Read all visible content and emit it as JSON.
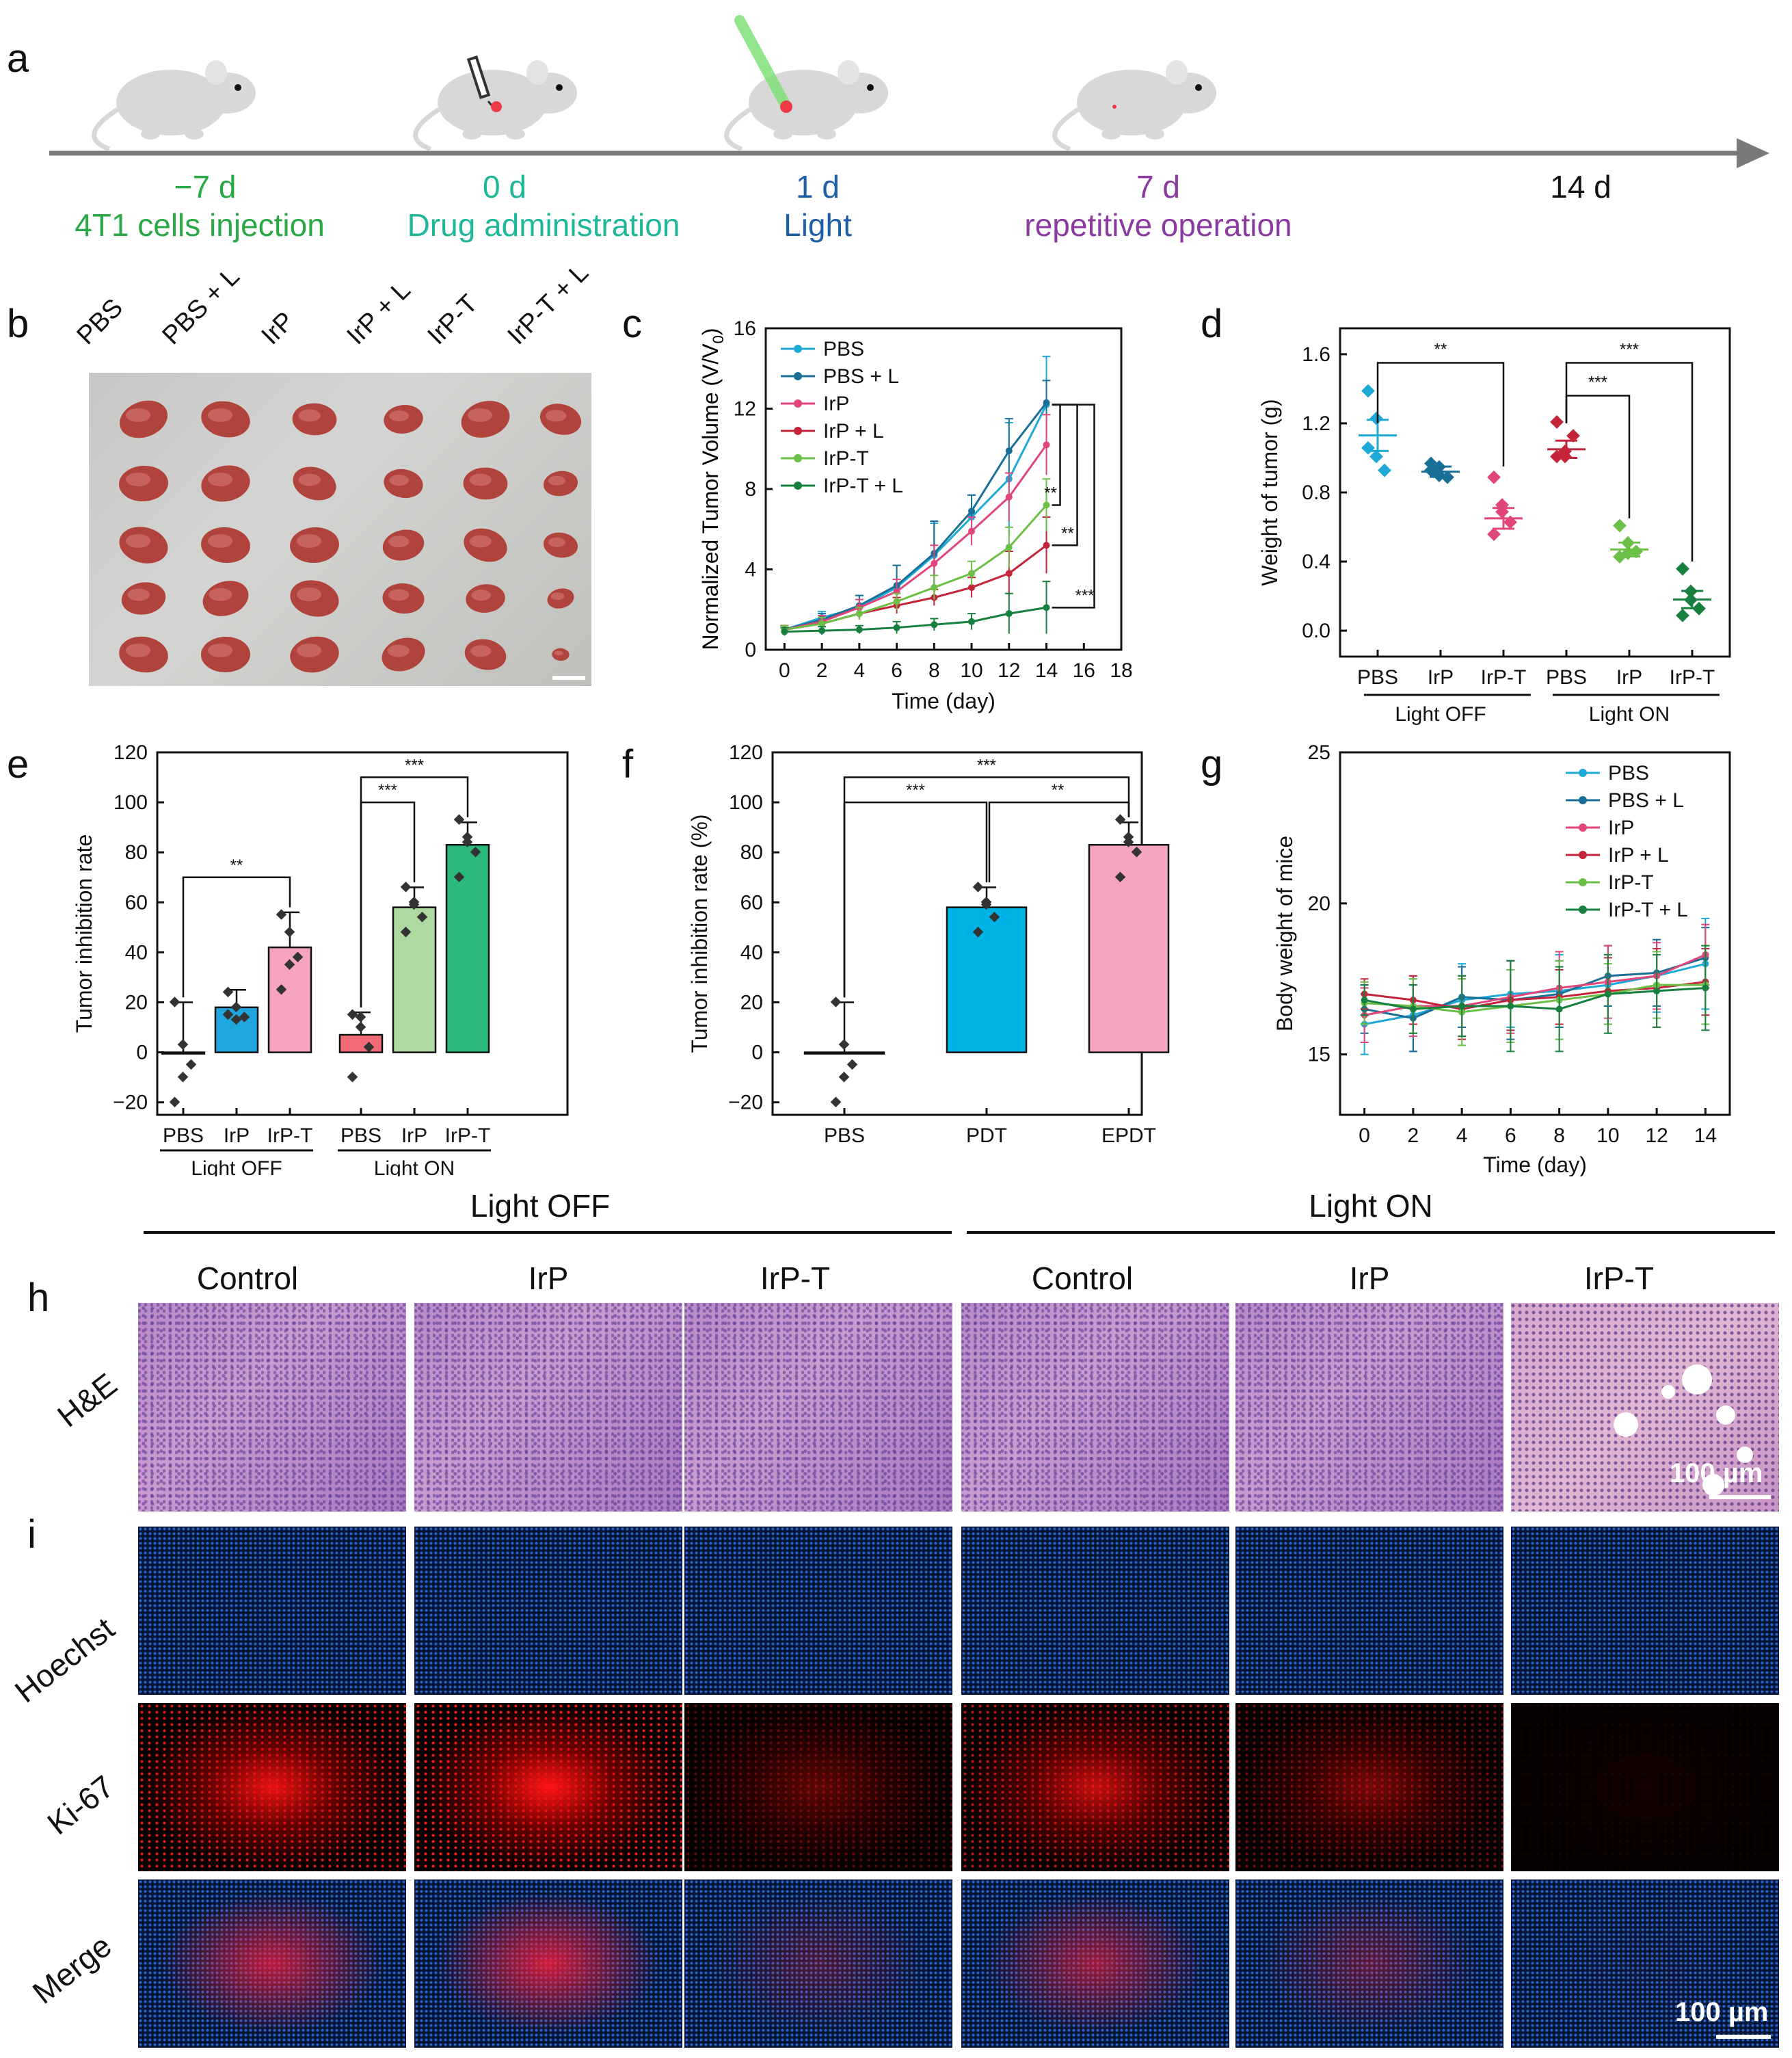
{
  "panel_labels": {
    "a": "a",
    "b": "b",
    "c": "c",
    "d": "d",
    "e": "e",
    "f": "f",
    "g": "g",
    "h": "h",
    "i": "i"
  },
  "timeline": {
    "events": [
      {
        "day": "−7 d",
        "desc": "4T1 cells injection",
        "color": "#2aa845"
      },
      {
        "day": "0 d",
        "desc": "Drug administration",
        "color": "#1fb79a"
      },
      {
        "day": "1 d",
        "desc": "Light",
        "color": "#1f5fa8"
      },
      {
        "day": "7 d",
        "desc": "repetitive operation",
        "color": "#8a3aa0"
      },
      {
        "day": "14 d",
        "desc": "",
        "color": "#111111"
      }
    ]
  },
  "photo_b": {
    "columns": [
      "PBS",
      "PBS + L",
      "IrP",
      "IrP + L",
      "IrP-T",
      "IrP-T + L"
    ]
  },
  "colors": {
    "PBS": "#1fa9d6",
    "PBS + L": "#1a6f97",
    "IrP": "#e0457b",
    "IrP + L": "#c4243a",
    "IrP-T": "#6cbf47",
    "IrP-T + L": "#17803f"
  },
  "chart_data": [
    {
      "id": "c",
      "type": "line",
      "ylabel": "Normalized Tumor Volume (V/V",
      "ylabel_sub": "0",
      "ylabel_end": ")",
      "xlabel": "Time (day)",
      "xlim": [
        -1,
        18
      ],
      "ylim": [
        0,
        16
      ],
      "xticks": [
        "0",
        "2",
        "4",
        "6",
        "8",
        "10",
        "12",
        "14",
        "16",
        "18"
      ],
      "yticks": [
        "0",
        "4",
        "8",
        "12",
        "16"
      ],
      "x": [
        0,
        2,
        4,
        6,
        8,
        10,
        12,
        14
      ],
      "series": [
        {
          "name": "PBS",
          "values": [
            1.0,
            1.6,
            2.1,
            3.1,
            4.7,
            6.6,
            8.5,
            12.2
          ],
          "err": [
            0.2,
            0.3,
            0.6,
            1.1,
            1.6,
            1.1,
            2.8,
            2.4
          ]
        },
        {
          "name": "PBS + L",
          "values": [
            1.0,
            1.5,
            2.2,
            3.2,
            4.8,
            6.9,
            9.9,
            12.3
          ],
          "err": [
            0.2,
            0.3,
            0.5,
            1.0,
            1.6,
            0.8,
            1.6,
            1.1
          ]
        },
        {
          "name": "IrP",
          "values": [
            1.0,
            1.4,
            2.1,
            2.9,
            4.3,
            5.9,
            7.6,
            10.2
          ],
          "err": [
            0.2,
            0.3,
            0.4,
            0.6,
            0.9,
            0.7,
            1.2,
            1.5
          ]
        },
        {
          "name": "IrP + L",
          "values": [
            1.0,
            1.3,
            1.8,
            2.2,
            2.6,
            3.1,
            3.8,
            5.2
          ],
          "err": [
            0.2,
            0.3,
            0.3,
            0.4,
            0.4,
            0.5,
            1.1,
            1.4
          ]
        },
        {
          "name": "IrP-T",
          "values": [
            1.0,
            1.3,
            1.8,
            2.4,
            3.1,
            3.8,
            5.1,
            7.2
          ],
          "err": [
            0.2,
            0.3,
            0.3,
            0.4,
            0.6,
            0.6,
            1.0,
            1.3
          ]
        },
        {
          "name": "IrP-T + L",
          "values": [
            0.9,
            0.95,
            1.0,
            1.1,
            1.25,
            1.4,
            1.8,
            2.1
          ],
          "err": [
            0.2,
            0.2,
            0.2,
            0.3,
            0.3,
            0.4,
            1.0,
            1.3
          ]
        }
      ],
      "significance": [
        "**",
        "**",
        "***"
      ]
    },
    {
      "id": "d",
      "type": "scatter",
      "ylabel": "Weight of tumor (g)",
      "ylim": [
        -0.15,
        1.75
      ],
      "yticks": [
        "0.0",
        "0.4",
        "0.8",
        "1.2",
        "1.6"
      ],
      "categories": [
        "PBS",
        "IrP",
        "IrP-T",
        "PBS",
        "IrP",
        "IrP-T"
      ],
      "groups": [
        "Light OFF",
        "Light ON"
      ],
      "means": [
        1.13,
        0.92,
        0.65,
        1.05,
        0.47,
        0.18
      ],
      "sem": [
        0.09,
        0.03,
        0.06,
        0.05,
        0.04,
        0.05
      ],
      "points": [
        [
          1.38,
          1.22,
          0.92,
          1.05,
          1.0
        ],
        [
          0.96,
          0.94,
          0.88,
          0.92,
          0.89
        ],
        [
          0.88,
          0.72,
          0.62,
          0.55,
          0.68
        ],
        [
          1.2,
          1.0,
          1.12,
          1.0,
          1.03
        ],
        [
          0.6,
          0.5,
          0.45,
          0.42,
          0.44
        ],
        [
          0.35,
          0.22,
          0.12,
          0.08,
          0.17
        ]
      ],
      "point_colors": [
        "#1fa9d6",
        "#1a6f97",
        "#e0457b",
        "#c4243a",
        "#6cbf47",
        "#17803f"
      ],
      "significance": [
        "**",
        "***",
        "***"
      ]
    },
    {
      "id": "e",
      "type": "bar",
      "ylabel": "Tumor inhibition rate",
      "ylim": [
        -25,
        120
      ],
      "yticks": [
        "−20",
        "0",
        "20",
        "40",
        "60",
        "80",
        "100",
        "120"
      ],
      "categories": [
        "PBS",
        "IrP",
        "IrP-T",
        "PBS",
        "IrP",
        "IrP-T"
      ],
      "groups": [
        "Light OFF",
        "Light ON"
      ],
      "values": [
        0,
        18,
        42,
        7,
        58,
        83
      ],
      "err": [
        20,
        7,
        14,
        9,
        8,
        9
      ],
      "points": [
        [
          20,
          3,
          -5,
          -20,
          -10
        ],
        [
          24,
          18,
          14,
          15,
          13
        ],
        [
          55,
          48,
          38,
          25,
          35
        ],
        [
          15,
          14,
          2,
          -10,
          10
        ],
        [
          66,
          59,
          54,
          48,
          60
        ],
        [
          93,
          86,
          80,
          70,
          84
        ]
      ],
      "bar_colors": [
        "#86d5ec",
        "#1ea6dd",
        "#f5a3c0",
        "#f36b76",
        "#aedaa0",
        "#2bba7a"
      ],
      "significance": [
        "**",
        "***",
        "***"
      ]
    },
    {
      "id": "f",
      "type": "bar",
      "ylabel": "Tumor inhibition rate (%)",
      "ylim": [
        -25,
        120
      ],
      "yticks": [
        "−20",
        "0",
        "20",
        "40",
        "60",
        "80",
        "100",
        "120"
      ],
      "categories": [
        "PBS",
        "PDT",
        "EPDT"
      ],
      "values": [
        0,
        58,
        83
      ],
      "err": [
        20,
        8,
        9
      ],
      "points": [
        [
          20,
          3,
          -5,
          -20,
          -10
        ],
        [
          66,
          59,
          54,
          48,
          60
        ],
        [
          93,
          86,
          80,
          70,
          84
        ]
      ],
      "bar_colors": [
        "#86d5ec",
        "#00b3e6",
        "#f6a5c0"
      ],
      "significance": [
        "***",
        "**",
        "***"
      ]
    },
    {
      "id": "g",
      "type": "line",
      "ylabel": "Body weight of mice",
      "xlabel": "Time (day)",
      "xlim": [
        -1,
        15
      ],
      "ylim": [
        13,
        25
      ],
      "xticks": [
        "0",
        "2",
        "4",
        "6",
        "8",
        "10",
        "12",
        "14"
      ],
      "yticks": [
        "15",
        "20",
        "25"
      ],
      "x": [
        0,
        2,
        4,
        6,
        8,
        10,
        12,
        14
      ],
      "series": [
        {
          "name": "PBS",
          "values": [
            16.0,
            16.3,
            16.8,
            17.0,
            17.1,
            17.3,
            17.6,
            18.0
          ],
          "err": [
            1.0,
            1.2,
            1.2,
            1.1,
            1.2,
            1.3,
            1.2,
            1.5
          ]
        },
        {
          "name": "PBS + L",
          "values": [
            16.5,
            16.2,
            16.9,
            16.8,
            17.0,
            17.6,
            17.7,
            18.2
          ],
          "err": [
            0.8,
            1.1,
            1.0,
            1.3,
            1.1,
            1.0,
            1.1,
            1.0
          ]
        },
        {
          "name": "IrP",
          "values": [
            16.3,
            16.6,
            16.6,
            16.9,
            17.2,
            17.4,
            17.6,
            18.3
          ],
          "err": [
            0.9,
            1.0,
            1.0,
            1.2,
            1.2,
            1.2,
            1.1,
            1.0
          ]
        },
        {
          "name": "IrP + L",
          "values": [
            17.0,
            16.8,
            16.5,
            16.8,
            16.9,
            17.1,
            17.2,
            17.4
          ],
          "err": [
            0.5,
            0.8,
            1.0,
            1.0,
            0.9,
            1.1,
            1.3,
            1.1
          ]
        },
        {
          "name": "IrP-T",
          "values": [
            16.7,
            16.6,
            16.4,
            16.6,
            16.8,
            17.0,
            17.3,
            17.3
          ],
          "err": [
            0.7,
            0.9,
            1.1,
            1.2,
            1.3,
            1.0,
            1.1,
            1.3
          ]
        },
        {
          "name": "IrP-T + L",
          "values": [
            16.8,
            16.5,
            16.6,
            16.6,
            16.5,
            17.0,
            17.1,
            17.2
          ],
          "err": [
            0.5,
            0.8,
            1.0,
            1.5,
            1.4,
            1.3,
            1.2,
            1.4
          ]
        }
      ]
    }
  ],
  "histology": {
    "group_headers": [
      "Light OFF",
      "Light ON"
    ],
    "columns": [
      "Control",
      "IrP",
      "IrP-T",
      "Control",
      "IrP",
      "IrP-T"
    ],
    "row_he": "H&E",
    "rows_if": [
      "Hoechst",
      "Ki-67",
      "Merge"
    ],
    "scale_bar": "100 µm"
  }
}
